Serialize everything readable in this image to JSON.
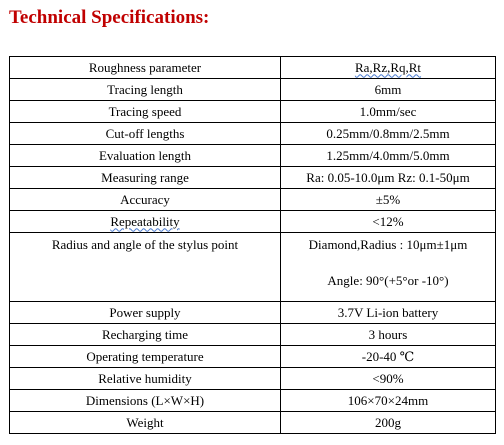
{
  "doc": {
    "title": "Technical Specifications:",
    "title_color": "#c00000"
  },
  "specs": {
    "rows": [
      {
        "param": "Roughness parameter",
        "value": "Ra,Rz,Rq,Rt"
      },
      {
        "param": "Tracing length",
        "value": "6mm"
      },
      {
        "param": "Tracing speed",
        "value": "1.0mm/sec"
      },
      {
        "param": "Cut-off lengths",
        "value": "0.25mm/0.8mm/2.5mm"
      },
      {
        "param": "Evaluation length",
        "value": "1.25mm/4.0mm/5.0mm"
      },
      {
        "param": "Measuring range",
        "value": "Ra: 0.05-10.0μm Rz: 0.1-50μm"
      },
      {
        "param": "Accuracy",
        "value": "±5%"
      },
      {
        "param": "Repeatability",
        "value": "<12%"
      },
      {
        "param": "Radius and angle of the stylus point",
        "value": "Diamond,Radius : 10μm±1μm",
        "value_2": "Angle: 90°(+5°or -10°)"
      },
      {
        "param": "Power supply",
        "value": "3.7V Li-ion battery"
      },
      {
        "param": "Recharging time",
        "value": "3 hours"
      },
      {
        "param": "Operating temperature",
        "value": "-20-40 ℃"
      },
      {
        "param": "Relative humidity",
        "value": "<90%"
      },
      {
        "param": "Dimensions (L×W×H)",
        "value": "106×70×24mm"
      },
      {
        "param": "Weight",
        "value": "200g"
      }
    ]
  }
}
